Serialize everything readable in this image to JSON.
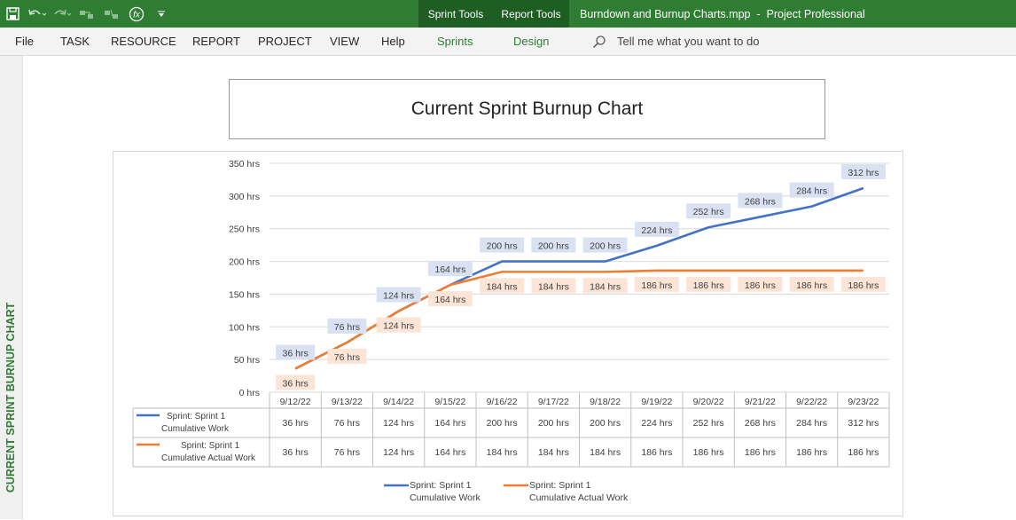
{
  "titlebar": {
    "context_tabs": [
      "Sprint Tools",
      "Report Tools"
    ],
    "document_title": "Burndown and Burnup Charts.mpp  -  Project Professional",
    "qat_icons": [
      "save-icon",
      "undo-icon",
      "redo-icon",
      "link-tasks-icon",
      "unlink-tasks-icon",
      "formula-icon",
      "customize-qat-icon"
    ]
  },
  "menu": {
    "items": [
      "File",
      "TASK",
      "RESOURCE",
      "REPORT",
      "PROJECT",
      "VIEW",
      "Help",
      "Sprints",
      "Design"
    ],
    "tell_me": "Tell me what you want to do"
  },
  "side_label": "CURRENT SPRINT BURNUP CHART",
  "report": {
    "title": "Current Sprint Burnup Chart"
  },
  "colors": {
    "work": "#4472c4",
    "actual": "#ed7d31",
    "ribbon_green": "#2f7d32"
  },
  "chart_data": {
    "type": "line",
    "title": "Current Sprint Burnup Chart",
    "categories": [
      "9/12/22",
      "9/13/22",
      "9/14/22",
      "9/15/22",
      "9/16/22",
      "9/17/22",
      "9/18/22",
      "9/19/22",
      "9/20/22",
      "9/21/22",
      "9/22/22",
      "9/23/22"
    ],
    "y_ticks": [
      "0 hrs",
      "50 hrs",
      "100 hrs",
      "150 hrs",
      "200 hrs",
      "250 hrs",
      "300 hrs",
      "350 hrs"
    ],
    "ylim": [
      0,
      350
    ],
    "unit": "hrs",
    "grid": true,
    "legend_position": "bottom",
    "series": [
      {
        "name": "Sprint: Sprint 1 Cumulative Work",
        "name_lines": [
          "Sprint: Sprint 1",
          "Cumulative Work"
        ],
        "color": "#4472c4",
        "values": [
          36,
          76,
          124,
          164,
          200,
          200,
          200,
          224,
          252,
          268,
          284,
          312
        ],
        "labels": [
          "36 hrs",
          "76 hrs",
          "124 hrs",
          "164 hrs",
          "200 hrs",
          "200 hrs",
          "200 hrs",
          "224 hrs",
          "252 hrs",
          "268 hrs",
          "284 hrs",
          "312 hrs"
        ]
      },
      {
        "name": "Sprint: Sprint 1 Cumulative Actual Work",
        "name_lines": [
          "Sprint: Sprint 1",
          "Cumulative Actual Work"
        ],
        "color": "#ed7d31",
        "values": [
          36,
          76,
          124,
          164,
          184,
          184,
          184,
          186,
          186,
          186,
          186,
          186
        ],
        "labels": [
          "36 hrs",
          "76 hrs",
          "124 hrs",
          "164 hrs",
          "184 hrs",
          "184 hrs",
          "184 hrs",
          "186 hrs",
          "186 hrs",
          "186 hrs",
          "186 hrs",
          "186 hrs"
        ]
      }
    ]
  }
}
